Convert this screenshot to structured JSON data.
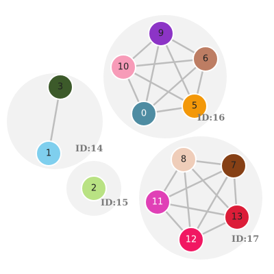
{
  "groups": [
    {
      "id": "g14",
      "label": "ID:14"
    },
    {
      "id": "g15",
      "label": "ID:15"
    },
    {
      "id": "g16",
      "label": "ID:16"
    },
    {
      "id": "g17",
      "label": "ID:17"
    }
  ],
  "nodes": [
    {
      "id": "0",
      "label": "0",
      "color": "#4e8ca2",
      "text_color": "#ffffff",
      "group": "g16"
    },
    {
      "id": "1",
      "label": "1",
      "color": "#7fcfee",
      "text_color": "#222222",
      "group": "g14"
    },
    {
      "id": "2",
      "label": "2",
      "color": "#b9e283",
      "text_color": "#222222",
      "group": "g15"
    },
    {
      "id": "3",
      "label": "3",
      "color": "#3c5a2a",
      "text_color": "#222222",
      "group": "g14"
    },
    {
      "id": "5",
      "label": "5",
      "color": "#f39809",
      "text_color": "#222222",
      "group": "g16"
    },
    {
      "id": "6",
      "label": "6",
      "color": "#bd7d63",
      "text_color": "#222222",
      "group": "g16"
    },
    {
      "id": "7",
      "label": "7",
      "color": "#864015",
      "text_color": "#222222",
      "group": "g17"
    },
    {
      "id": "8",
      "label": "8",
      "color": "#efcdb9",
      "text_color": "#222222",
      "group": "g17"
    },
    {
      "id": "9",
      "label": "9",
      "color": "#8c34c6",
      "text_color": "#222222",
      "group": "g16"
    },
    {
      "id": "10",
      "label": "10",
      "color": "#f79bb8",
      "text_color": "#222222",
      "group": "g16"
    },
    {
      "id": "11",
      "label": "11",
      "color": "#e040b6",
      "text_color": "#ffffff",
      "group": "g17"
    },
    {
      "id": "12",
      "label": "12",
      "color": "#f11762",
      "text_color": "#ffffff",
      "group": "g17"
    },
    {
      "id": "13",
      "label": "13",
      "color": "#dc1d38",
      "text_color": "#222222",
      "group": "g17"
    }
  ],
  "edges": [
    [
      "3",
      "1"
    ],
    [
      "9",
      "10"
    ],
    [
      "9",
      "6"
    ],
    [
      "9",
      "0"
    ],
    [
      "9",
      "5"
    ],
    [
      "10",
      "6"
    ],
    [
      "10",
      "0"
    ],
    [
      "10",
      "5"
    ],
    [
      "6",
      "0"
    ],
    [
      "6",
      "5"
    ],
    [
      "0",
      "5"
    ],
    [
      "8",
      "7"
    ],
    [
      "8",
      "11"
    ],
    [
      "8",
      "12"
    ],
    [
      "8",
      "13"
    ],
    [
      "7",
      "11"
    ],
    [
      "7",
      "12"
    ],
    [
      "7",
      "13"
    ],
    [
      "11",
      "12"
    ],
    [
      "11",
      "13"
    ],
    [
      "12",
      "13"
    ]
  ]
}
